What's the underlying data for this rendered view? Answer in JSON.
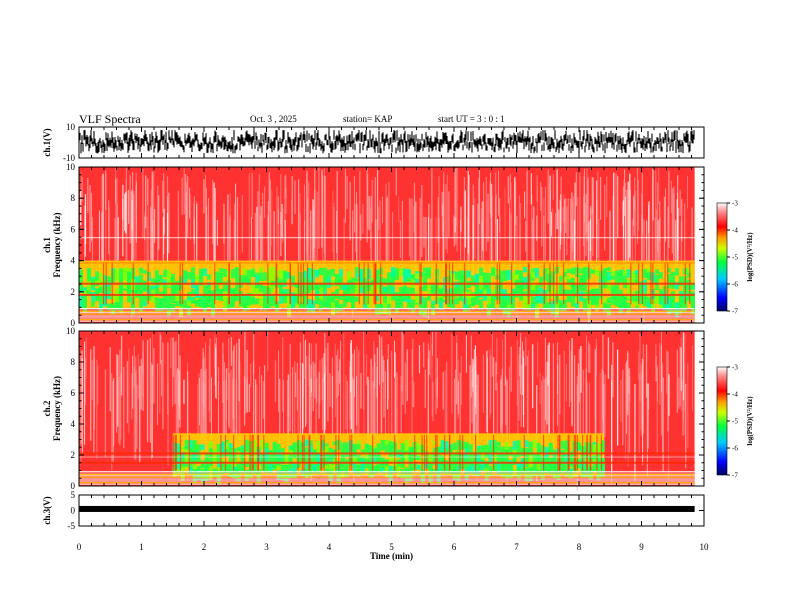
{
  "header": {
    "title": "VLF Spectra",
    "date": "Oct. 3 , 2025",
    "station": "station= KAP",
    "start": "start UT = 3 : 0 : 1"
  },
  "chart_data": [
    {
      "type": "line",
      "panel": "ch1-waveform",
      "ylabel": "ch.1(V)",
      "ylim": [
        -10,
        10
      ],
      "yticks": [
        "10",
        "-10"
      ],
      "xlim": [
        0,
        10
      ],
      "data_end": 9.85,
      "level_range": [
        -7,
        8
      ]
    },
    {
      "type": "heatmap",
      "panel": "ch1-spectrogram",
      "ylabel": "ch.1 Frequency (kHz)",
      "ylim": [
        0,
        10
      ],
      "yticks": [
        "0",
        "2",
        "4",
        "6",
        "8",
        "10"
      ],
      "xlim": [
        0,
        10
      ],
      "data_end": 9.85,
      "green_band_khz": [
        1.2,
        3.6
      ],
      "colorbar": {
        "label": "log(PSD)(V²/Hz)",
        "range": [
          -7,
          -3
        ],
        "ticks": [
          "-3",
          "-4",
          "-5",
          "-6",
          "-7"
        ]
      }
    },
    {
      "type": "heatmap",
      "panel": "ch2-spectrogram",
      "ylabel": "ch.2 Frequency (kHz)",
      "ylim": [
        0,
        10
      ],
      "yticks": [
        "0",
        "2",
        "4",
        "6",
        "8",
        "10"
      ],
      "xlim": [
        0,
        10
      ],
      "data_end": 9.85,
      "green_band_khz": [
        1.0,
        3.0
      ],
      "green_band_time_min": [
        1.5,
        8.4
      ],
      "colorbar": {
        "label": "log(PSD)(V²/Hz)",
        "range": [
          -7,
          -3
        ],
        "ticks": [
          "-3",
          "-4",
          "-5",
          "-6",
          "-7"
        ]
      }
    },
    {
      "type": "line",
      "panel": "ch3-waveform",
      "ylabel": "ch.3(V)",
      "ylim": [
        -5,
        5
      ],
      "yticks": [
        "5",
        "0",
        "-5"
      ],
      "xlim": [
        0,
        10
      ],
      "data_end": 9.85,
      "level": 0.5,
      "xlabel": "Time (min)",
      "xticks": [
        "0",
        "1",
        "2",
        "3",
        "4",
        "5",
        "6",
        "7",
        "8",
        "9",
        "10"
      ]
    }
  ],
  "colors": {
    "psd_scale": [
      "#000080",
      "#0000ff",
      "#00ffff",
      "#00ff00",
      "#ffff00",
      "#ff0000",
      "#ffffff"
    ],
    "background": "#ff3030",
    "ink": "#000000"
  }
}
